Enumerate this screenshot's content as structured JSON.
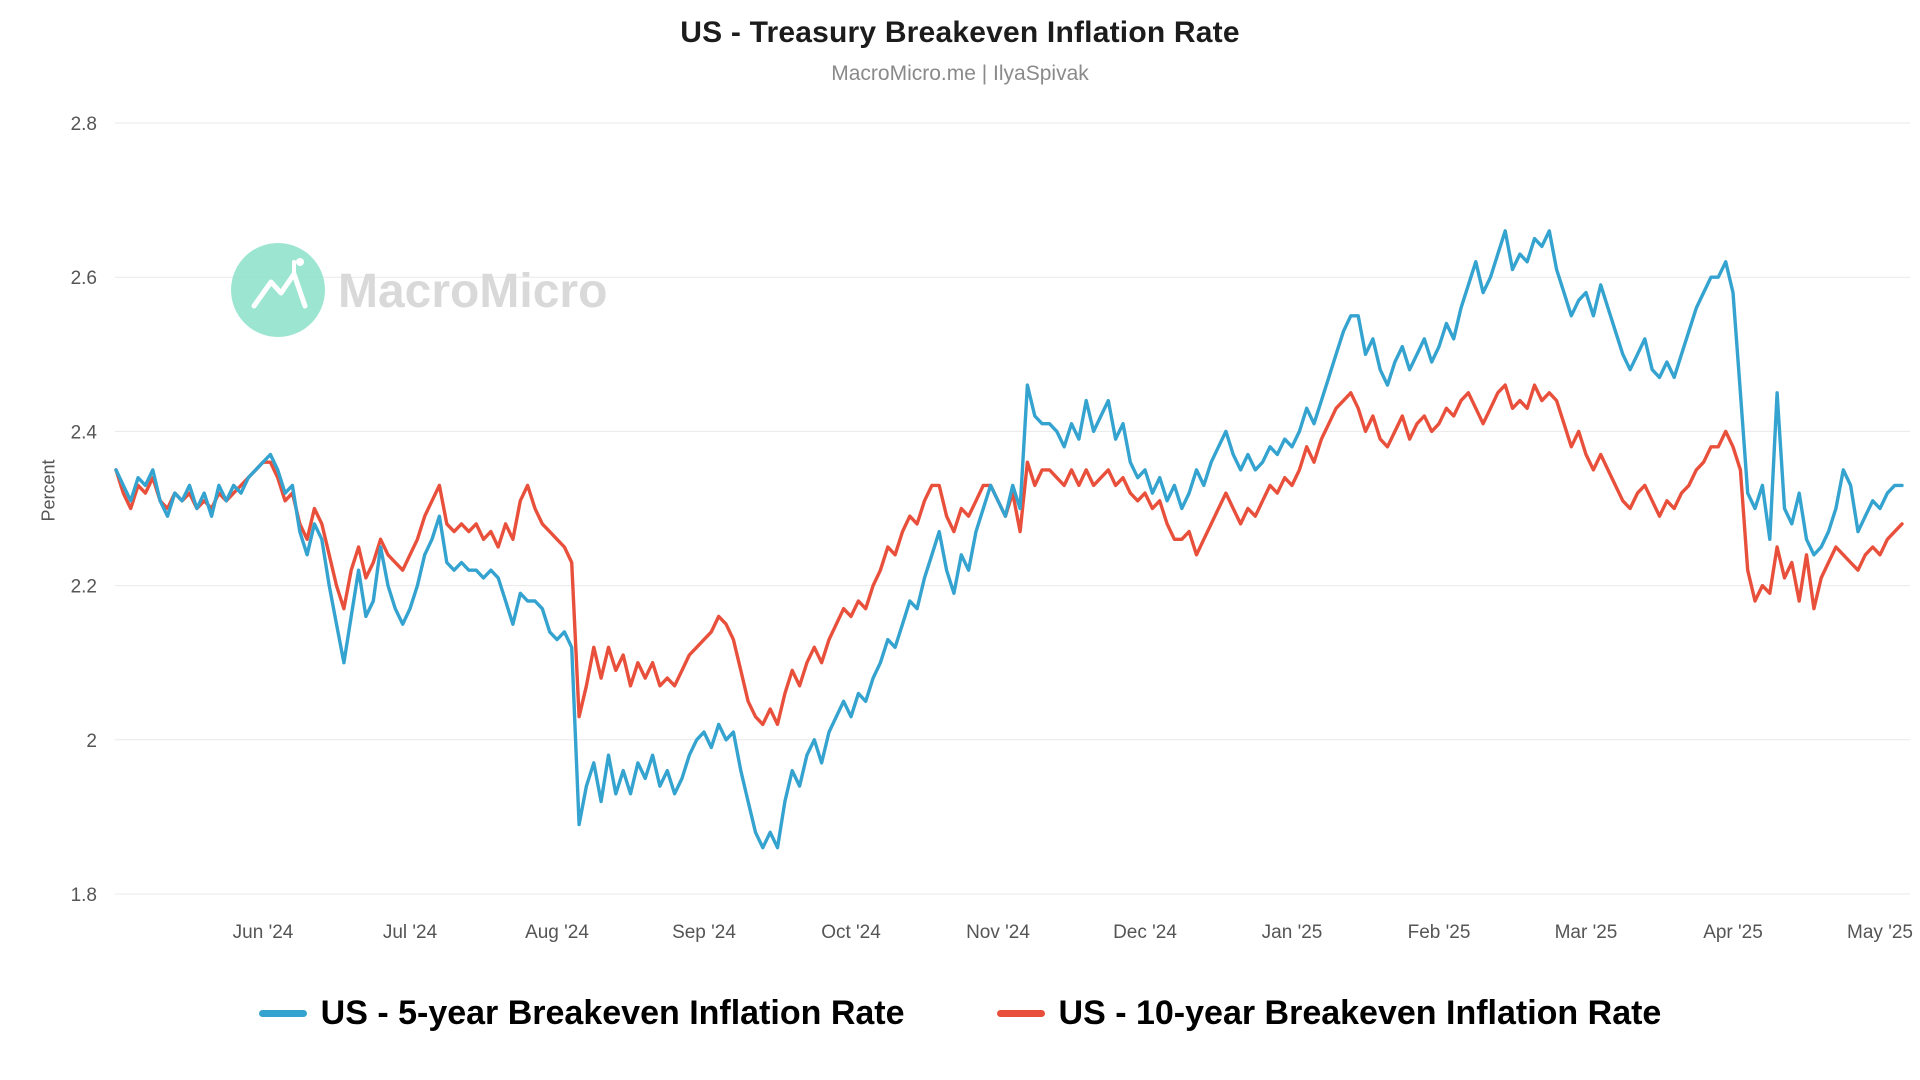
{
  "header": {
    "title": "US - Treasury Breakeven Inflation Rate",
    "subtitle": "MacroMicro.me | IlyaSpivak"
  },
  "watermark": {
    "brand": "MacroMicro",
    "logo_color": "#8BE0C9"
  },
  "chart_data": {
    "type": "line",
    "title": "US - Treasury Breakeven Inflation Rate",
    "subtitle": "MacroMicro.me | IlyaSpivak",
    "xlabel": "",
    "ylabel": "Percent",
    "ylim": [
      1.8,
      2.8
    ],
    "yticks": [
      1.8,
      2.0,
      2.2,
      2.4,
      2.6,
      2.8
    ],
    "ytick_labels": [
      "1.8",
      "2",
      "2.2",
      "2.4",
      "2.6",
      "2.8"
    ],
    "x_unit": "months since 2024-05-01",
    "xlim": [
      0,
      12.15
    ],
    "xticks": [
      1,
      2,
      3,
      4,
      5,
      6,
      7,
      8,
      9,
      10,
      11,
      12
    ],
    "xtick_labels": [
      "Jun '24",
      "Jul '24",
      "Aug '24",
      "Sep '24",
      "Oct '24",
      "Nov '24",
      "Dec '24",
      "Jan '25",
      "Feb '25",
      "Mar '25",
      "Apr '25",
      "May '25"
    ],
    "grid": "horizontal",
    "legend_position": "bottom",
    "series": [
      {
        "name": "US - 5-year Breakeven Inflation Rate",
        "color": "#35A3CF",
        "x_start": 0,
        "x_step": 0.05,
        "values": [
          2.35,
          2.33,
          2.31,
          2.34,
          2.33,
          2.35,
          2.31,
          2.29,
          2.32,
          2.31,
          2.33,
          2.3,
          2.32,
          2.29,
          2.33,
          2.31,
          2.33,
          2.32,
          2.34,
          2.35,
          2.36,
          2.37,
          2.35,
          2.32,
          2.33,
          2.27,
          2.24,
          2.28,
          2.26,
          2.2,
          2.15,
          2.1,
          2.16,
          2.22,
          2.16,
          2.18,
          2.25,
          2.2,
          2.17,
          2.15,
          2.17,
          2.2,
          2.24,
          2.26,
          2.29,
          2.23,
          2.22,
          2.23,
          2.22,
          2.22,
          2.21,
          2.22,
          2.21,
          2.18,
          2.15,
          2.19,
          2.18,
          2.18,
          2.17,
          2.14,
          2.13,
          2.14,
          2.12,
          1.89,
          1.94,
          1.97,
          1.92,
          1.98,
          1.93,
          1.96,
          1.93,
          1.97,
          1.95,
          1.98,
          1.94,
          1.96,
          1.93,
          1.95,
          1.98,
          2.0,
          2.01,
          1.99,
          2.02,
          2.0,
          2.01,
          1.96,
          1.92,
          1.88,
          1.86,
          1.88,
          1.86,
          1.92,
          1.96,
          1.94,
          1.98,
          2.0,
          1.97,
          2.01,
          2.03,
          2.05,
          2.03,
          2.06,
          2.05,
          2.08,
          2.1,
          2.13,
          2.12,
          2.15,
          2.18,
          2.17,
          2.21,
          2.24,
          2.27,
          2.22,
          2.19,
          2.24,
          2.22,
          2.27,
          2.3,
          2.33,
          2.31,
          2.29,
          2.33,
          2.3,
          2.46,
          2.42,
          2.41,
          2.41,
          2.4,
          2.38,
          2.41,
          2.39,
          2.44,
          2.4,
          2.42,
          2.44,
          2.39,
          2.41,
          2.36,
          2.34,
          2.35,
          2.32,
          2.34,
          2.31,
          2.33,
          2.3,
          2.32,
          2.35,
          2.33,
          2.36,
          2.38,
          2.4,
          2.37,
          2.35,
          2.37,
          2.35,
          2.36,
          2.38,
          2.37,
          2.39,
          2.38,
          2.4,
          2.43,
          2.41,
          2.44,
          2.47,
          2.5,
          2.53,
          2.55,
          2.55,
          2.5,
          2.52,
          2.48,
          2.46,
          2.49,
          2.51,
          2.48,
          2.5,
          2.52,
          2.49,
          2.51,
          2.54,
          2.52,
          2.56,
          2.59,
          2.62,
          2.58,
          2.6,
          2.63,
          2.66,
          2.61,
          2.63,
          2.62,
          2.65,
          2.64,
          2.66,
          2.61,
          2.58,
          2.55,
          2.57,
          2.58,
          2.55,
          2.59,
          2.56,
          2.53,
          2.5,
          2.48,
          2.5,
          2.52,
          2.48,
          2.47,
          2.49,
          2.47,
          2.5,
          2.53,
          2.56,
          2.58,
          2.6,
          2.6,
          2.62,
          2.58,
          2.45,
          2.32,
          2.3,
          2.33,
          2.26,
          2.45,
          2.3,
          2.28,
          2.32,
          2.26,
          2.24,
          2.25,
          2.27,
          2.3,
          2.35,
          2.33,
          2.27,
          2.29,
          2.31,
          2.3,
          2.32,
          2.33,
          2.33
        ]
      },
      {
        "name": "US - 10-year Breakeven Inflation Rate",
        "color": "#E8503C",
        "x_start": 0,
        "x_step": 0.05,
        "values": [
          2.35,
          2.32,
          2.3,
          2.33,
          2.32,
          2.34,
          2.31,
          2.3,
          2.32,
          2.31,
          2.32,
          2.3,
          2.31,
          2.3,
          2.32,
          2.31,
          2.32,
          2.33,
          2.34,
          2.35,
          2.36,
          2.36,
          2.34,
          2.31,
          2.32,
          2.28,
          2.26,
          2.3,
          2.28,
          2.24,
          2.2,
          2.17,
          2.22,
          2.25,
          2.21,
          2.23,
          2.26,
          2.24,
          2.23,
          2.22,
          2.24,
          2.26,
          2.29,
          2.31,
          2.33,
          2.28,
          2.27,
          2.28,
          2.27,
          2.28,
          2.26,
          2.27,
          2.25,
          2.28,
          2.26,
          2.31,
          2.33,
          2.3,
          2.28,
          2.27,
          2.26,
          2.25,
          2.23,
          2.03,
          2.07,
          2.12,
          2.08,
          2.12,
          2.09,
          2.11,
          2.07,
          2.1,
          2.08,
          2.1,
          2.07,
          2.08,
          2.07,
          2.09,
          2.11,
          2.12,
          2.13,
          2.14,
          2.16,
          2.15,
          2.13,
          2.09,
          2.05,
          2.03,
          2.02,
          2.04,
          2.02,
          2.06,
          2.09,
          2.07,
          2.1,
          2.12,
          2.1,
          2.13,
          2.15,
          2.17,
          2.16,
          2.18,
          2.17,
          2.2,
          2.22,
          2.25,
          2.24,
          2.27,
          2.29,
          2.28,
          2.31,
          2.33,
          2.33,
          2.29,
          2.27,
          2.3,
          2.29,
          2.31,
          2.33,
          2.33,
          2.31,
          2.29,
          2.32,
          2.27,
          2.36,
          2.33,
          2.35,
          2.35,
          2.34,
          2.33,
          2.35,
          2.33,
          2.35,
          2.33,
          2.34,
          2.35,
          2.33,
          2.34,
          2.32,
          2.31,
          2.32,
          2.3,
          2.31,
          2.28,
          2.26,
          2.26,
          2.27,
          2.24,
          2.26,
          2.28,
          2.3,
          2.32,
          2.3,
          2.28,
          2.3,
          2.29,
          2.31,
          2.33,
          2.32,
          2.34,
          2.33,
          2.35,
          2.38,
          2.36,
          2.39,
          2.41,
          2.43,
          2.44,
          2.45,
          2.43,
          2.4,
          2.42,
          2.39,
          2.38,
          2.4,
          2.42,
          2.39,
          2.41,
          2.42,
          2.4,
          2.41,
          2.43,
          2.42,
          2.44,
          2.45,
          2.43,
          2.41,
          2.43,
          2.45,
          2.46,
          2.43,
          2.44,
          2.43,
          2.46,
          2.44,
          2.45,
          2.44,
          2.41,
          2.38,
          2.4,
          2.37,
          2.35,
          2.37,
          2.35,
          2.33,
          2.31,
          2.3,
          2.32,
          2.33,
          2.31,
          2.29,
          2.31,
          2.3,
          2.32,
          2.33,
          2.35,
          2.36,
          2.38,
          2.38,
          2.4,
          2.38,
          2.35,
          2.22,
          2.18,
          2.2,
          2.19,
          2.25,
          2.21,
          2.23,
          2.18,
          2.24,
          2.17,
          2.21,
          2.23,
          2.25,
          2.24,
          2.23,
          2.22,
          2.24,
          2.25,
          2.24,
          2.26,
          2.27,
          2.28
        ]
      }
    ]
  }
}
